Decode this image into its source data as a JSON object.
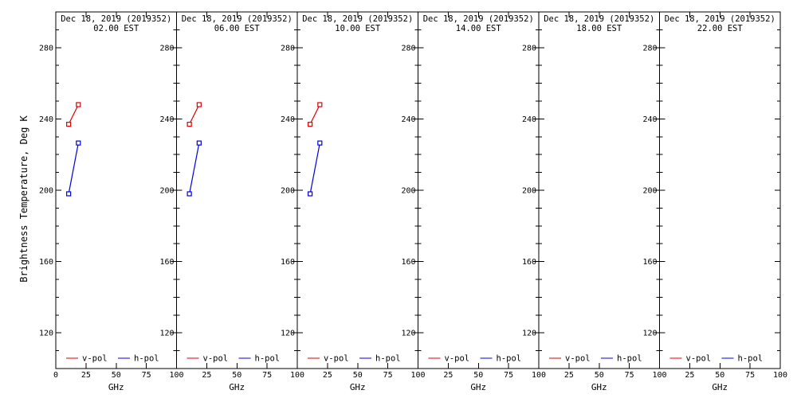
{
  "chart_data": {
    "type": "line",
    "date_label": "Dec 18, 2019 (2019352)",
    "ylabel": "Brightness Temperature, Deg K",
    "xlabel": "GHz",
    "xlim": [
      0,
      100
    ],
    "ylim": [
      100,
      300
    ],
    "x_major_ticks": [
      0,
      25,
      50,
      75,
      100
    ],
    "y_major_ticks": [
      120,
      160,
      200,
      240,
      280
    ],
    "y_minor_step": 10,
    "grid": false,
    "legend_position": "bottom-inside",
    "legend": [
      {
        "label": "v-pol",
        "color": "#dd0000"
      },
      {
        "label": "h-pol",
        "color": "#0000dd"
      }
    ],
    "frequencies_ghz": [
      10.65,
      18.7
    ],
    "panels": [
      {
        "time": "02.00 EST",
        "series": [
          {
            "name": "v-pol",
            "color": "#dd0000",
            "x": [
              10.65,
              18.7
            ],
            "y": [
              237,
              248
            ]
          },
          {
            "name": "h-pol",
            "color": "#0000dd",
            "x": [
              10.65,
              18.7
            ],
            "y": [
              198,
              226.5
            ]
          }
        ]
      },
      {
        "time": "06.00 EST",
        "series": [
          {
            "name": "v-pol",
            "color": "#dd0000",
            "x": [
              10.65,
              18.7
            ],
            "y": [
              237,
              248
            ]
          },
          {
            "name": "h-pol",
            "color": "#0000dd",
            "x": [
              10.65,
              18.7
            ],
            "y": [
              198,
              226.5
            ]
          }
        ]
      },
      {
        "time": "10.00 EST",
        "series": [
          {
            "name": "v-pol",
            "color": "#dd0000",
            "x": [
              10.65,
              18.7
            ],
            "y": [
              237,
              248
            ]
          },
          {
            "name": "h-pol",
            "color": "#0000dd",
            "x": [
              10.65,
              18.7
            ],
            "y": [
              198,
              226.5
            ]
          }
        ]
      },
      {
        "time": "14.00 EST",
        "series": []
      },
      {
        "time": "18.00 EST",
        "series": []
      },
      {
        "time": "22.00 EST",
        "series": []
      }
    ]
  }
}
